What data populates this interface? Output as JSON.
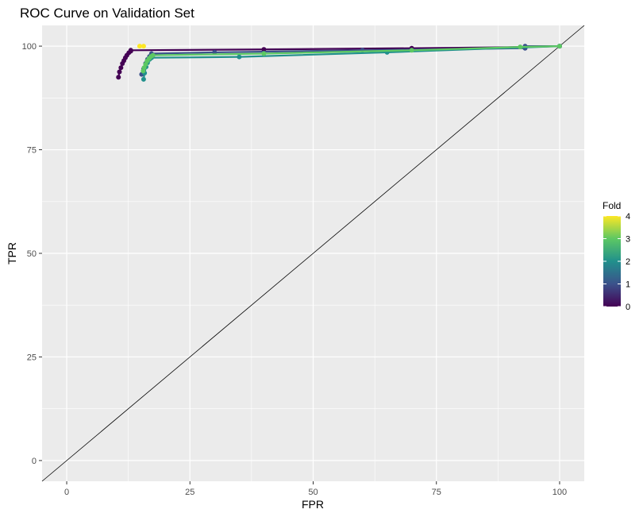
{
  "chart_data": {
    "type": "line",
    "title": "ROC Curve on Validation Set",
    "xlabel": "FPR",
    "ylabel": "TPR",
    "xlim": [
      -5,
      105
    ],
    "ylim": [
      -5,
      105
    ],
    "x_ticks": [
      0,
      25,
      50,
      75,
      100
    ],
    "y_ticks": [
      0,
      25,
      50,
      75,
      100
    ],
    "grid": true,
    "reference_line": {
      "from": [
        -5,
        -5
      ],
      "to": [
        105,
        105
      ],
      "color": "#000000"
    },
    "legend": {
      "title": "Fold",
      "placement": "right",
      "type": "colorbar",
      "range": [
        0,
        4
      ],
      "ticks": [
        0,
        1,
        2,
        3,
        4
      ],
      "colors": [
        "#440154",
        "#3b528b",
        "#21908c",
        "#5dc863",
        "#fde725"
      ]
    },
    "series": [
      {
        "fold": 0,
        "color": "#440154",
        "x": [
          10.5,
          10.7,
          11.0,
          11.3,
          11.6,
          11.9,
          12.2,
          12.6,
          13.0,
          13.0,
          40.0,
          70.0,
          93.0,
          100.0
        ],
        "y": [
          92.5,
          93.8,
          94.8,
          95.8,
          96.5,
          97.2,
          97.8,
          98.4,
          98.8,
          99.0,
          99.2,
          99.5,
          99.8,
          100.0
        ]
      },
      {
        "fold": 1,
        "color": "#3b528b",
        "x": [
          15.2,
          15.6,
          16.0,
          16.4,
          16.8,
          17.2,
          30.0,
          60.0,
          93.0,
          93.0,
          100.0
        ],
        "y": [
          93.2,
          94.5,
          95.8,
          96.8,
          97.5,
          98.2,
          98.5,
          99.0,
          99.5,
          100.0,
          100.0
        ]
      },
      {
        "fold": 2,
        "color": "#21908c",
        "x": [
          15.6,
          15.8,
          16.1,
          16.4,
          16.8,
          17.2,
          35.0,
          65.0,
          100.0
        ],
        "y": [
          92.0,
          93.5,
          95.0,
          96.0,
          96.8,
          97.2,
          97.4,
          98.5,
          100.0
        ]
      },
      {
        "fold": 3,
        "color": "#5dc863",
        "x": [
          15.5,
          15.7,
          16.0,
          16.3,
          16.7,
          17.1,
          17.5,
          40.0,
          70.0,
          92.0,
          100.0
        ],
        "y": [
          94.0,
          94.8,
          95.6,
          96.4,
          97.0,
          97.5,
          97.8,
          98.2,
          99.0,
          99.8,
          100.0
        ]
      },
      {
        "fold": 4,
        "color": "#fde725",
        "x": [
          14.8,
          15.6
        ],
        "y": [
          100.0,
          100.0
        ]
      }
    ]
  }
}
